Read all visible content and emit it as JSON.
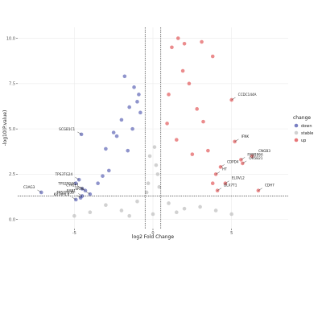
{
  "chart_data": {
    "type": "scatter",
    "title": "",
    "xlabel": "log2 Fold Change",
    "ylabel": "-log10(P.value)",
    "xlim": [
      -8.6,
      8.6
    ],
    "ylim": [
      -0.5,
      10.6
    ],
    "x_ticks": [
      -5,
      0,
      5
    ],
    "y_ticks": [
      0.0,
      2.5,
      5.0,
      7.5,
      10.0
    ],
    "y_tick_labels": [
      "0.0",
      "2.5",
      "5.0",
      "7.5",
      "10.0"
    ],
    "grid": true,
    "thresholds": {
      "fold_change_lines": [
        -0.5,
        0.5
      ],
      "pvalue_line": 1.3
    },
    "legend": {
      "title": "change",
      "position": "right",
      "entries": [
        {
          "name": "down",
          "color": "#1f2a9a"
        },
        {
          "name": "stable",
          "color": "#bdbdbd"
        },
        {
          "name": "up",
          "color": "#d7191c"
        }
      ]
    },
    "series": [
      {
        "name": "down",
        "color": "#1f2a9a",
        "points": [
          [
            -4.55,
            4.7
          ],
          [
            -7.1,
            1.5
          ],
          [
            -4.7,
            2.2
          ],
          [
            -4.9,
            2.0
          ],
          [
            -4.5,
            1.7
          ],
          [
            -4.3,
            1.6
          ],
          [
            -4.6,
            1.2
          ],
          [
            -4.5,
            1.3
          ],
          [
            -4.9,
            1.1
          ],
          [
            -4.0,
            1.4
          ],
          [
            -1.2,
            7.3
          ],
          [
            -1.0,
            6.5
          ],
          [
            -2.0,
            5.5
          ],
          [
            -1.5,
            6.2
          ],
          [
            -1.3,
            5.0
          ],
          [
            -2.5,
            4.8
          ],
          [
            -3.0,
            3.9
          ],
          [
            -2.8,
            2.7
          ],
          [
            -3.2,
            2.4
          ],
          [
            -3.5,
            2.0
          ],
          [
            -1.8,
            7.9
          ],
          [
            -0.9,
            6.9
          ],
          [
            -2.3,
            4.6
          ],
          [
            -1.6,
            3.8
          ],
          [
            -0.8,
            5.9
          ]
        ]
      },
      {
        "name": "up",
        "color": "#d7191c",
        "points": [
          [
            1.6,
            10.0
          ],
          [
            2.0,
            9.7
          ],
          [
            1.2,
            9.5
          ],
          [
            3.1,
            9.8
          ],
          [
            3.8,
            9.0
          ],
          [
            5.0,
            6.6
          ],
          [
            5.2,
            4.3
          ],
          [
            5.6,
            3.3
          ],
          [
            6.3,
            3.5
          ],
          [
            5.7,
            3.1
          ],
          [
            4.3,
            2.9
          ],
          [
            4.0,
            2.5
          ],
          [
            3.8,
            2.0
          ],
          [
            4.6,
            2.0
          ],
          [
            4.1,
            1.6
          ],
          [
            6.7,
            1.6
          ],
          [
            2.3,
            7.5
          ],
          [
            1.9,
            8.2
          ],
          [
            1.0,
            6.9
          ],
          [
            2.8,
            6.1
          ],
          [
            3.2,
            5.4
          ],
          [
            1.5,
            4.4
          ],
          [
            2.5,
            3.6
          ],
          [
            3.5,
            3.8
          ],
          [
            0.9,
            5.3
          ]
        ]
      },
      {
        "name": "stable",
        "color": "#bdbdbd",
        "points": [
          [
            -3.0,
            0.8
          ],
          [
            -2.0,
            0.5
          ],
          [
            -1.0,
            1.0
          ],
          [
            0.0,
            0.3
          ],
          [
            1.0,
            0.9
          ],
          [
            2.0,
            0.6
          ],
          [
            3.0,
            0.7
          ],
          [
            -0.3,
            2.0
          ],
          [
            0.2,
            3.0
          ],
          [
            -0.4,
            1.5
          ],
          [
            0.3,
            2.5
          ],
          [
            4.0,
            0.5
          ],
          [
            -4.0,
            0.4
          ],
          [
            5.0,
            0.3
          ],
          [
            -5.0,
            0.2
          ],
          [
            0.1,
            4.0
          ],
          [
            -0.2,
            3.5
          ],
          [
            0.4,
            1.8
          ],
          [
            -1.5,
            0.2
          ],
          [
            1.5,
            0.4
          ]
        ]
      }
    ],
    "labeled_genes": [
      {
        "label": "CCDC144A",
        "x": 5.0,
        "y": 6.6
      },
      {
        "label": "SCGB1C1",
        "x": -4.55,
        "y": 4.7
      },
      {
        "label": "IFNK",
        "x": 5.2,
        "y": 4.3
      },
      {
        "label": "CNGB3",
        "x": 6.3,
        "y": 3.5
      },
      {
        "label": "FAM186A",
        "x": 5.6,
        "y": 3.3
      },
      {
        "label": "OR5B21",
        "x": 5.7,
        "y": 3.1
      },
      {
        "label": "CDPD4",
        "x": 4.3,
        "y": 2.9
      },
      {
        "label": "HT",
        "x": 4.0,
        "y": 2.5
      },
      {
        "label": "ELOVL2",
        "x": 4.6,
        "y": 2.0
      },
      {
        "label": "TPS3TG24",
        "x": -4.7,
        "y": 2.2
      },
      {
        "label": "TPS2TG2C",
        "x": -4.5,
        "y": 1.7
      },
      {
        "label": "TPS3TG3B",
        "x": -4.6,
        "y": 1.2
      },
      {
        "label": "CYP2E1",
        "x": -4.3,
        "y": 1.6
      },
      {
        "label": "C3AG3",
        "x": -7.1,
        "y": 1.5
      },
      {
        "label": "KRTAP4.6",
        "x": -4.9,
        "y": 1.1
      },
      {
        "label": "EAR1",
        "x": -4.5,
        "y": 1.3
      },
      {
        "label": "SRT8",
        "x": -4.0,
        "y": 1.4
      },
      {
        "label": "CDH7",
        "x": 6.7,
        "y": 1.6
      },
      {
        "label": "DLX7T1",
        "x": 4.1,
        "y": 1.6
      }
    ]
  }
}
